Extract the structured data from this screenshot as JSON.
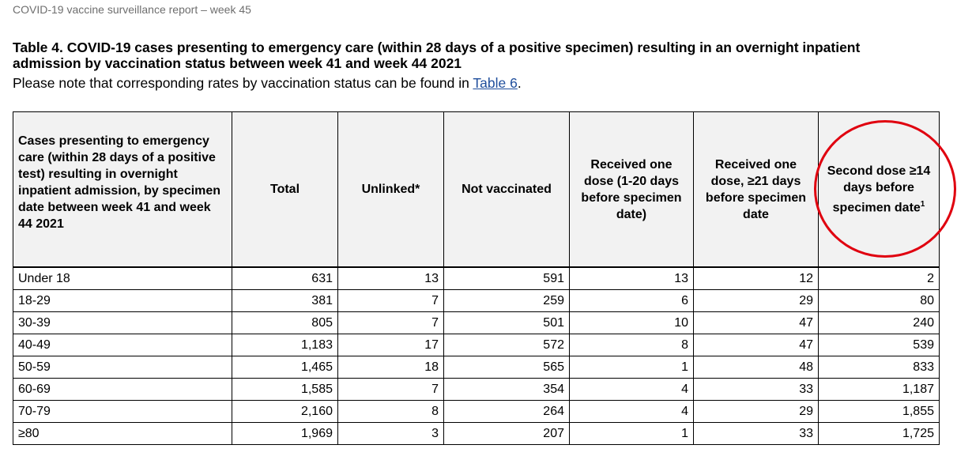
{
  "header": "COVID-19 vaccine surveillance report – week 45",
  "title": "Table 4. COVID-19 cases presenting to emergency care (within 28 days of a positive specimen) resulting in an overnight inpatient admission by vaccination status between week 41 and week 44 2021",
  "note": {
    "text": "Please note that corresponding rates by vaccination status can be found in ",
    "link": "Table 6",
    "suffix": "."
  },
  "table": {
    "headers": [
      "Cases presenting to emergency care (within 28 days of a positive test) resulting in overnight inpatient admission, by specimen date between week 41 and week 44 2021",
      "Total",
      "Unlinked*",
      "Not vaccinated",
      "Received one dose (1-20 days before specimen date)",
      "Received one dose, ≥21 days before specimen date",
      "Second dose ≥14 days before specimen date"
    ],
    "header_footnote": "1",
    "rows": [
      [
        "Under 18",
        "631",
        "13",
        "591",
        "13",
        "12",
        "2"
      ],
      [
        "18-29",
        "381",
        "7",
        "259",
        "6",
        "29",
        "80"
      ],
      [
        "30-39",
        "805",
        "7",
        "501",
        "10",
        "47",
        "240"
      ],
      [
        "40-49",
        "1,183",
        "17",
        "572",
        "8",
        "47",
        "539"
      ],
      [
        "50-59",
        "1,465",
        "18",
        "565",
        "1",
        "48",
        "833"
      ],
      [
        "60-69",
        "1,585",
        "7",
        "354",
        "4",
        "33",
        "1,187"
      ],
      [
        "70-79",
        "2,160",
        "8",
        "264",
        "4",
        "29",
        "1,855"
      ],
      [
        "≥80",
        "1,969",
        "3",
        "207",
        "1",
        "33",
        "1,725"
      ]
    ]
  },
  "colors": {
    "header_fill": "#f2f2f2",
    "link": "#1f4e9c",
    "annotation_circle": "#e0000f"
  }
}
